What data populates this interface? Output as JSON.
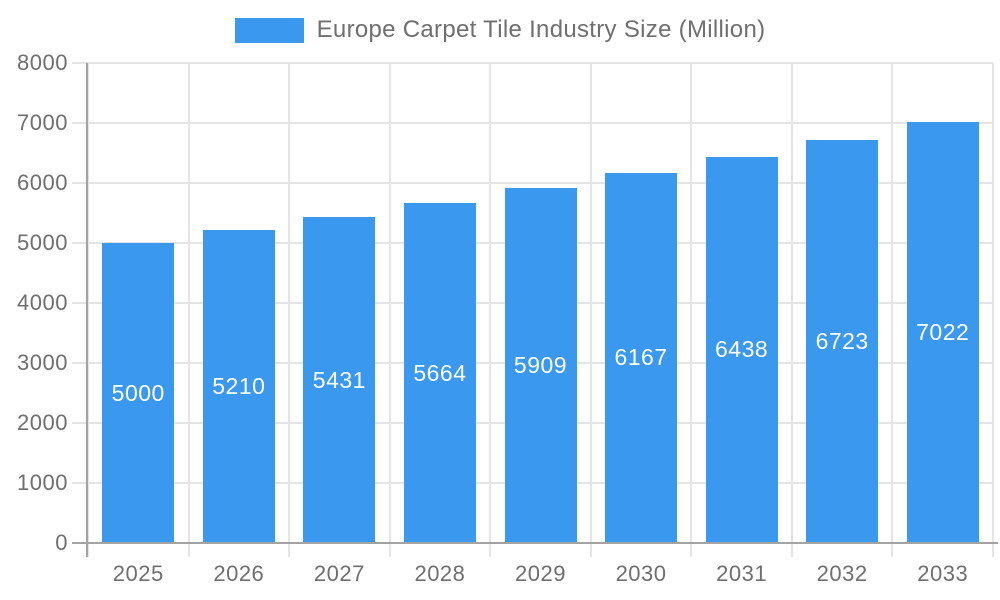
{
  "legend": {
    "label": "Europe Carpet Tile Industry Size (Million)"
  },
  "colors": {
    "bar": "#3a99ee",
    "grid": "#e5e5e5",
    "axis": "#a3a3a3",
    "axis_text": "#6f6f6f",
    "bar_label_text": "#ffffff",
    "background": "#ffffff"
  },
  "chart_data": {
    "type": "bar",
    "title": "Europe Carpet Tile Industry Size (Million)",
    "categories": [
      "2025",
      "2026",
      "2027",
      "2028",
      "2029",
      "2030",
      "2031",
      "2032",
      "2033"
    ],
    "values": [
      5000,
      5210,
      5431,
      5664,
      5909,
      6167,
      6438,
      6723,
      7022
    ],
    "series_name": "Europe Carpet Tile Industry Size (Million)",
    "xlabel": "",
    "ylabel": "",
    "ylim": [
      0,
      8000
    ],
    "ytick_step": 1000,
    "ytick_labels": [
      "0",
      "1000",
      "2000",
      "3000",
      "4000",
      "5000",
      "6000",
      "7000",
      "8000"
    ],
    "grid": true,
    "legend_position": "top",
    "value_labels": "inside-center"
  }
}
